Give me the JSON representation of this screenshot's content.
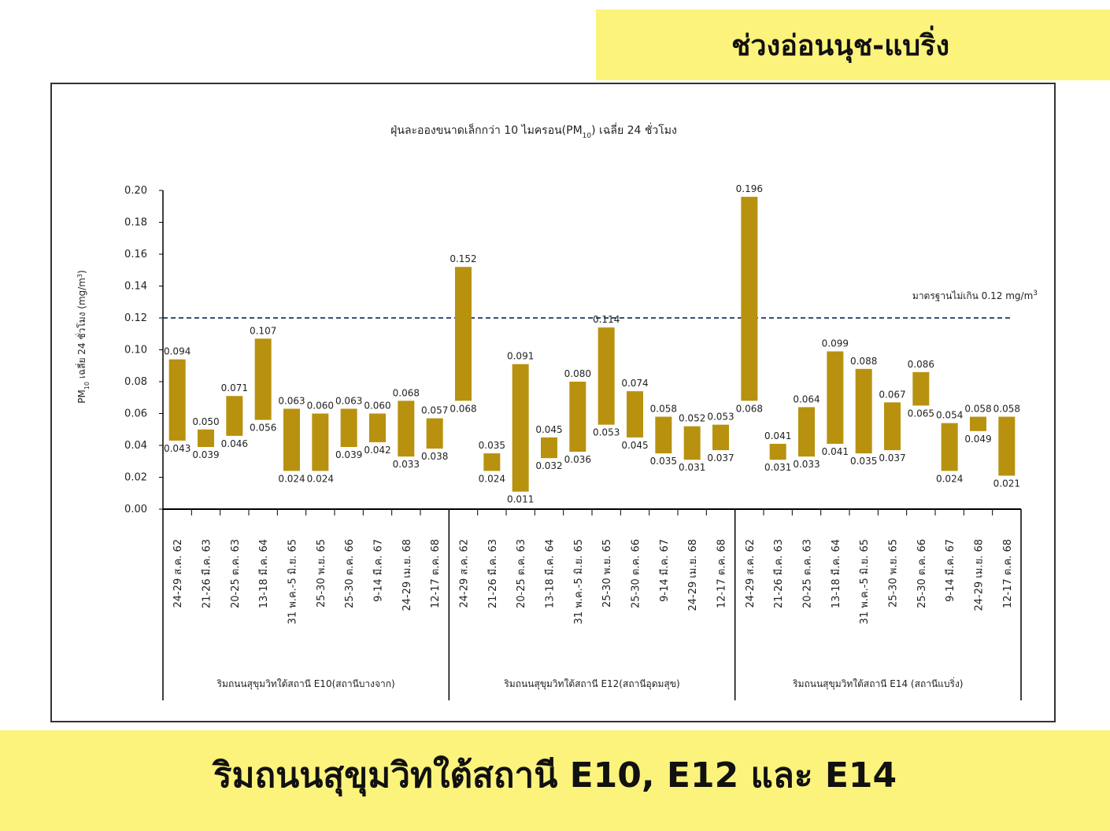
{
  "top_banner": {
    "title": "ช่วงอ่อนนุช-แบริ่ง"
  },
  "bottom_banner": {
    "title": "ริมถนนสุขุมวิทใต้สถานี E10, E12 และ E14"
  },
  "colors": {
    "bar": "#b8910f",
    "standard_line": "#1f3864",
    "banner": "#fcf37c"
  },
  "chart_data": {
    "type": "bar",
    "title_parts": [
      "ฝุ่นละอองขนาดเล็กกว่า 10 ไมครอน(PM",
      "10",
      ") เฉลี่ย 24 ชั่วโมง"
    ],
    "ylabel_parts": [
      "PM",
      "10",
      " เฉลี่ย 24 ชั่วโมง (mg/m",
      "3",
      ")"
    ],
    "ylim": [
      0,
      0.2
    ],
    "yticks": [
      "0.00",
      "0.02",
      "0.04",
      "0.06",
      "0.08",
      "0.10",
      "0.12",
      "0.14",
      "0.16",
      "0.18",
      "0.20"
    ],
    "standard": {
      "value": 0.12,
      "label_parts": [
        "มาตรฐานไม่เกิน 0.12 mg/m",
        "3"
      ]
    },
    "groups": [
      {
        "label": "ริมถนนสุขุมวิทใต้สถานี E10(สถานีบางจาก)",
        "categories": [
          "24-29 ส.ค. 62",
          "21-26 มี.ค. 63",
          "20-25 ต.ค. 63",
          "13-18 มี.ค. 64",
          "31 พ.ค.-5 มิ.ย. 65",
          "25-30 พ.ย. 65",
          "25-30 ต.ค. 66",
          "9-14 มี.ค. 67",
          "24-29 เม.ย. 68",
          "12-17 ต.ค. 68"
        ],
        "max": [
          0.094,
          0.05,
          0.071,
          0.107,
          0.063,
          0.06,
          0.063,
          0.06,
          0.068,
          0.057
        ],
        "min": [
          0.043,
          0.039,
          0.046,
          0.056,
          0.024,
          0.024,
          0.039,
          0.042,
          0.033,
          0.038
        ],
        "max_labels": [
          "0.094",
          "0.050",
          "0.071",
          "0.107",
          "0.063",
          "0.060",
          "0.063",
          "0.060",
          "0.068",
          "0.057"
        ],
        "min_labels": [
          "0.043",
          "0.039",
          "0.046",
          "0.056",
          "0.024",
          "0.024",
          "0.039",
          "0.042",
          "0.033",
          "0.038"
        ]
      },
      {
        "label": "ริมถนนสุขุมวิทใต้สถานี E12(สถานีอุดมสุข)",
        "categories": [
          "24-29 ส.ค. 62",
          "21-26 มี.ค. 63",
          "20-25 ต.ค. 63",
          "13-18 มี.ค. 64",
          "31 พ.ค.-5 มิ.ย. 65",
          "25-30 พ.ย. 65",
          "25-30 ต.ค. 66",
          "9-14 มี.ค. 67",
          "24-29 เม.ย. 68",
          "12-17 ต.ค. 68"
        ],
        "max": [
          0.152,
          0.035,
          0.091,
          0.045,
          0.08,
          0.114,
          0.074,
          0.058,
          0.052,
          0.053
        ],
        "min": [
          0.068,
          0.024,
          0.011,
          0.032,
          0.036,
          0.053,
          0.045,
          0.035,
          0.031,
          0.037
        ],
        "max_labels": [
          "0.152",
          "0.035",
          "0.091",
          "0.045",
          "0.080",
          "0.114",
          "0.074",
          "0.058",
          "0.052",
          "0.053"
        ],
        "min_labels": [
          "0.068",
          "0.024",
          "0.011",
          "0.032",
          "0.036",
          "0.053",
          "0.045",
          "0.035",
          "0.031",
          "0.037"
        ]
      },
      {
        "label": "ริมถนนสุขุมวิทใต้สถานี E14 (สถานีแบริ่ง)",
        "categories": [
          "24-29 ส.ค. 62",
          "21-26 มี.ค. 63",
          "20-25 ต.ค. 63",
          "13-18 มี.ค. 64",
          "31 พ.ค.-5 มิ.ย. 65",
          "25-30 พ.ย. 65",
          "25-30 ต.ค. 66",
          "9-14 มี.ค. 67",
          "24-29 เม.ย. 68",
          "12-17 ต.ค. 68"
        ],
        "max": [
          0.196,
          0.041,
          0.064,
          0.099,
          0.088,
          0.067,
          0.086,
          0.054,
          0.058,
          0.058
        ],
        "min": [
          0.068,
          0.031,
          0.033,
          0.041,
          0.035,
          0.037,
          0.065,
          0.024,
          0.049,
          0.021
        ],
        "max_labels": [
          "0.196",
          "0.041",
          "0.064",
          "0.099",
          "0.088",
          "0.067",
          "0.086",
          "0.054",
          "0.058",
          "0.058"
        ],
        "min_labels": [
          "0.068",
          "0.031",
          "0.033",
          "0.041",
          "0.035",
          "0.037",
          "0.065",
          "0.024",
          "0.049",
          "0.021"
        ]
      }
    ]
  }
}
